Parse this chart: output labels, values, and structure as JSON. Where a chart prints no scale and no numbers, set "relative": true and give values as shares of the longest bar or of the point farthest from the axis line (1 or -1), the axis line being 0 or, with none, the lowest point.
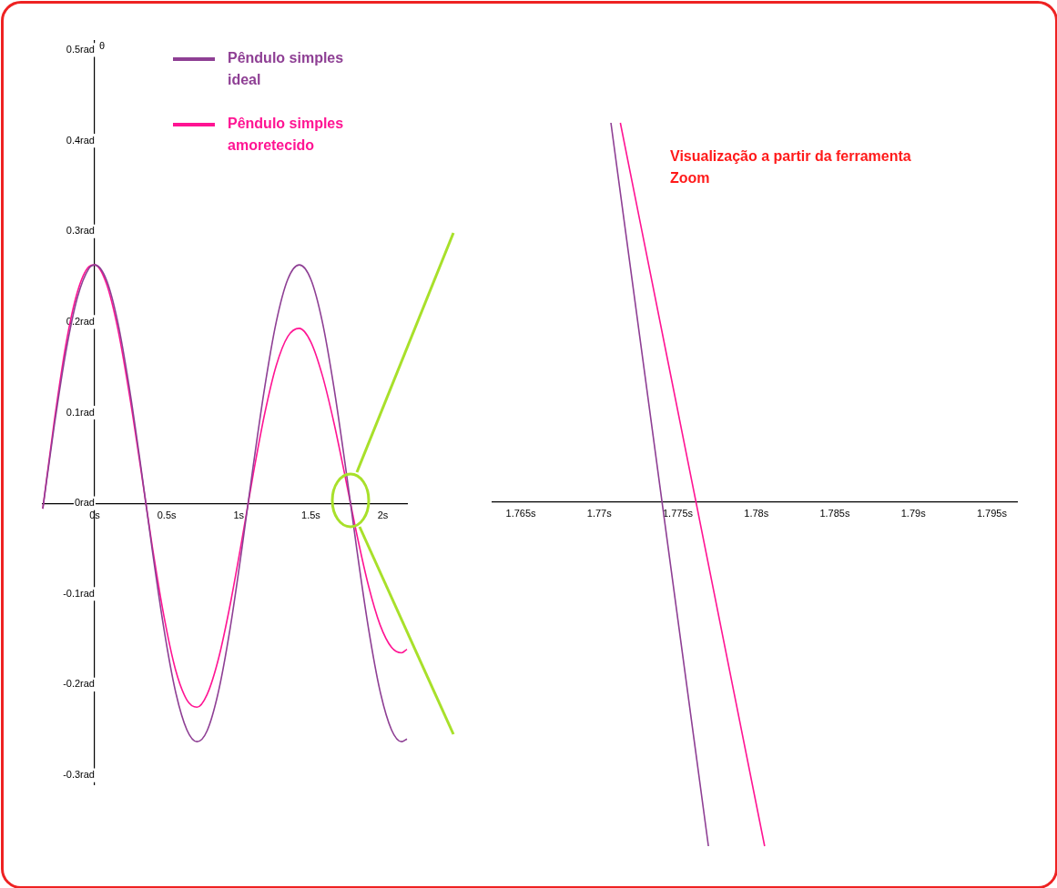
{
  "chart_data": [
    {
      "type": "line",
      "ylabel": "θ",
      "xlim": [
        -0.36,
        2.167
      ],
      "ylim": [
        -0.31,
        0.51
      ],
      "xticks": [
        {
          "value": 0,
          "label": "0s"
        },
        {
          "value": 0.5,
          "label": "0.5s"
        },
        {
          "value": 1,
          "label": "1s"
        },
        {
          "value": 1.5,
          "label": "1.5s"
        },
        {
          "value": 2,
          "label": "2s"
        }
      ],
      "yticks": [
        {
          "value": -0.3,
          "label": "-0.3rad"
        },
        {
          "value": -0.2,
          "label": "-0.2rad"
        },
        {
          "value": -0.1,
          "label": "-0.1rad"
        },
        {
          "value": 0,
          "label": "0rad"
        },
        {
          "value": 0.1,
          "label": "0.1rad"
        },
        {
          "value": 0.2,
          "label": "0.2rad"
        },
        {
          "value": 0.3,
          "label": "0.3rad"
        },
        {
          "value": 0.4,
          "label": "0.4rad"
        },
        {
          "value": 0.5,
          "label": "0.5rad"
        }
      ],
      "grid": false,
      "legend": "top",
      "marker": "none",
      "line_style": "solid",
      "x": [
        -0.36,
        -0.28,
        -0.2,
        -0.12,
        -0.04,
        0,
        0.08,
        0.16,
        0.24,
        0.32,
        0.4,
        0.48,
        0.56,
        0.64,
        0.71,
        0.78,
        0.86,
        0.94,
        1.02,
        1.1,
        1.18,
        1.26,
        1.34,
        1.42,
        1.5,
        1.58,
        1.66,
        1.74,
        1.82,
        1.9,
        1.98,
        2.06,
        2.13,
        2.167
      ],
      "series": [
        {
          "name": "Pêndulo simples ideal",
          "color": "#8e3f94",
          "values": [
            -0.006,
            0.086,
            0.167,
            0.227,
            0.259,
            0.263,
            0.247,
            0.2,
            0.128,
            0.041,
            -0.052,
            -0.138,
            -0.207,
            -0.25,
            -0.263,
            -0.251,
            -0.207,
            -0.138,
            -0.052,
            0.041,
            0.128,
            0.2,
            0.247,
            0.263,
            0.247,
            0.2,
            0.128,
            0.041,
            -0.052,
            -0.138,
            -0.207,
            -0.25,
            -0.263,
            -0.26
          ]
        },
        {
          "name": "Pêndulo simples amoretecido",
          "color": "#ff1493",
          "values": [
            -0.006,
            0.091,
            0.175,
            0.233,
            0.261,
            0.263,
            0.243,
            0.193,
            0.121,
            0.038,
            -0.048,
            -0.124,
            -0.183,
            -0.217,
            -0.225,
            -0.211,
            -0.171,
            -0.112,
            -0.042,
            0.032,
            0.099,
            0.152,
            0.184,
            0.193,
            0.178,
            0.141,
            0.089,
            0.028,
            -0.035,
            -0.091,
            -0.134,
            -0.159,
            -0.165,
            -0.161
          ]
        }
      ]
    },
    {
      "type": "line",
      "relative": true,
      "tick_labels": "x",
      "grid": false,
      "marker": "none",
      "line_style": "solid",
      "xlim": [
        1.7632,
        1.7966
      ],
      "xticks": [
        {
          "value": 1.765,
          "label": "1.765s"
        },
        {
          "value": 1.77,
          "label": "1.77s"
        },
        {
          "value": 1.775,
          "label": "1.775s"
        },
        {
          "value": 1.78,
          "label": "1.78s"
        },
        {
          "value": 1.785,
          "label": "1.785s"
        },
        {
          "value": 1.79,
          "label": "1.79s"
        },
        {
          "value": 1.795,
          "label": "1.795s"
        }
      ],
      "annotations": [
        "Visualização a partir da ferramenta Zoom"
      ],
      "series": [
        {
          "color": "#8e3f94",
          "x": [
            1.77074,
            1.77695
          ],
          "values": [
            1,
            -0.91
          ]
        },
        {
          "color": "#ff1493",
          "x": [
            1.77134,
            1.78053
          ],
          "values": [
            1,
            -0.91
          ]
        }
      ]
    }
  ]
}
